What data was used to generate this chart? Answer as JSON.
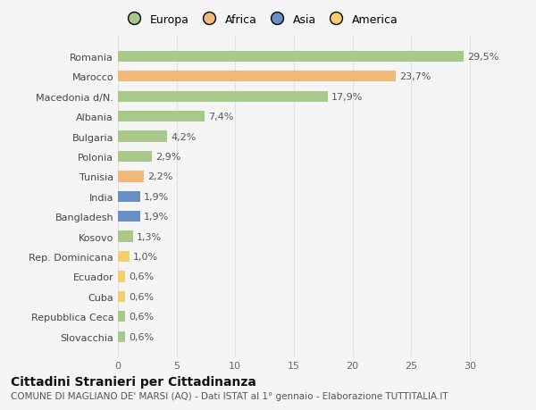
{
  "categories": [
    "Romania",
    "Marocco",
    "Macedonia d/N.",
    "Albania",
    "Bulgaria",
    "Polonia",
    "Tunisia",
    "India",
    "Bangladesh",
    "Kosovo",
    "Rep. Dominicana",
    "Ecuador",
    "Cuba",
    "Repubblica Ceca",
    "Slovacchia"
  ],
  "values": [
    29.5,
    23.7,
    17.9,
    7.4,
    4.2,
    2.9,
    2.2,
    1.9,
    1.9,
    1.3,
    1.0,
    0.6,
    0.6,
    0.6,
    0.6
  ],
  "labels": [
    "29,5%",
    "23,7%",
    "17,9%",
    "7,4%",
    "4,2%",
    "2,9%",
    "2,2%",
    "1,9%",
    "1,9%",
    "1,3%",
    "1,0%",
    "0,6%",
    "0,6%",
    "0,6%",
    "0,6%"
  ],
  "colors": [
    "#a8c98a",
    "#f0b87a",
    "#a8c98a",
    "#a8c98a",
    "#a8c98a",
    "#a8c98a",
    "#f0b87a",
    "#6b8fc4",
    "#6b8fc4",
    "#a8c98a",
    "#f5cf6e",
    "#f5cf6e",
    "#f5cf6e",
    "#a8c98a",
    "#a8c98a"
  ],
  "legend_labels": [
    "Europa",
    "Africa",
    "Asia",
    "America"
  ],
  "legend_colors": [
    "#a8c98a",
    "#f0b87a",
    "#6b8fc4",
    "#f5cf6e"
  ],
  "title": "Cittadini Stranieri per Cittadinanza",
  "subtitle": "COMUNE DI MAGLIANO DE' MARSI (AQ) - Dati ISTAT al 1° gennaio - Elaborazione TUTTITALIA.IT",
  "xlim": [
    0,
    32
  ],
  "background_color": "#f5f5f5",
  "grid_color": "#e0e0e0",
  "bar_height": 0.55,
  "title_fontsize": 10,
  "subtitle_fontsize": 7.5,
  "tick_fontsize": 8,
  "label_fontsize": 8
}
